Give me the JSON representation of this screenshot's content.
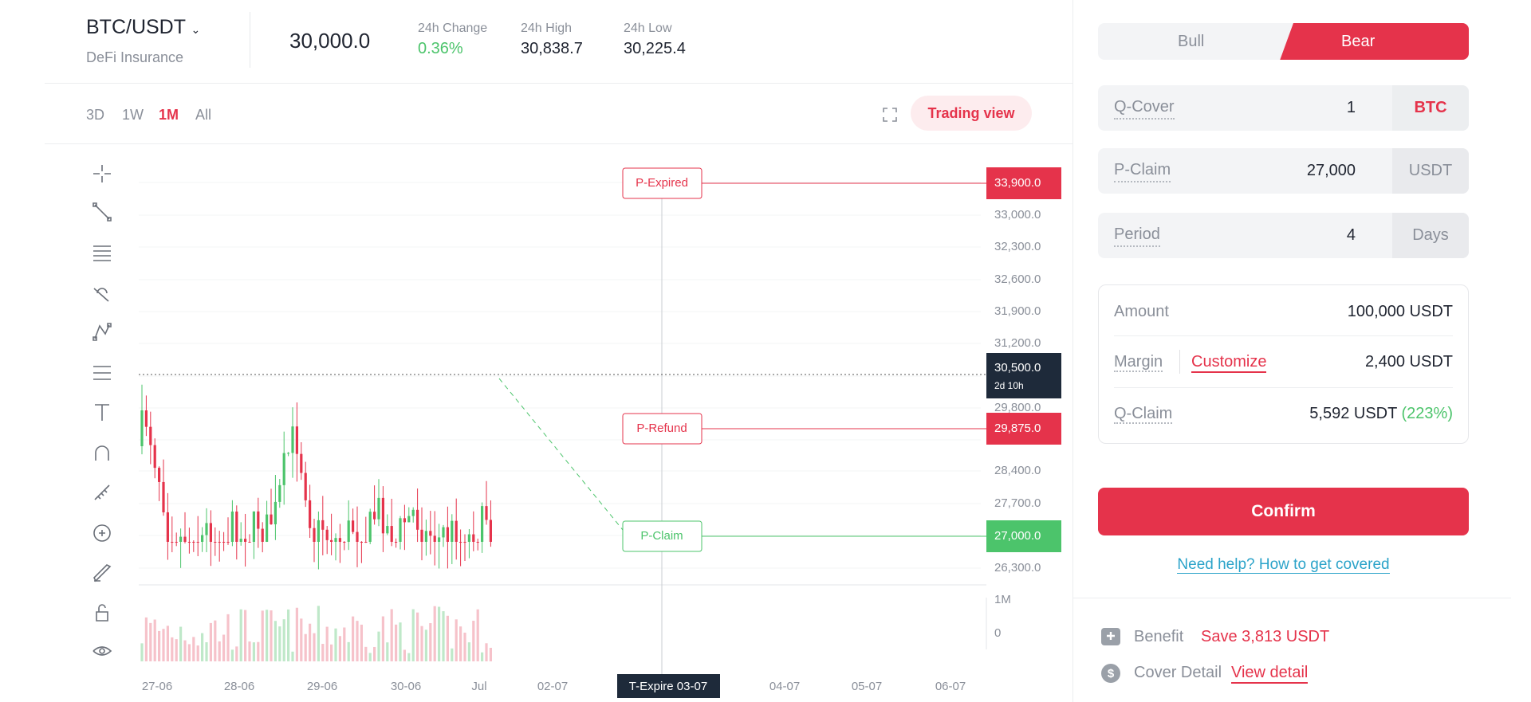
{
  "header": {
    "pair": "BTC/USDT",
    "subtitle": "DeFi Insurance",
    "price": "30,000.0",
    "stats": [
      {
        "label": "24h Change",
        "value": "0.36%"
      },
      {
        "label": "24h High",
        "value": "30,838.7"
      },
      {
        "label": "24h Low",
        "value": "30,225.4"
      }
    ]
  },
  "timeframes": [
    "3D",
    "1W",
    "1M",
    "All"
  ],
  "trading_view": "Trading view",
  "chart": {
    "price_labels": [
      "33,000.0",
      "32,300.0",
      "32,600.0",
      "31,900.0",
      "31,200.0",
      "29,800.0",
      "28,400.0",
      "27,700.0",
      "26,300.0"
    ],
    "volume_labels": [
      "1M",
      "0"
    ],
    "current_price": "30,500.0",
    "countdown": "2d 10h",
    "markers": [
      {
        "label": "P-Expired",
        "price": "33,900.0"
      },
      {
        "label": "P-Refund",
        "price": "29,875.0"
      },
      {
        "label": "P-Claim",
        "price": "27,000.0"
      }
    ],
    "dates": [
      "27-06",
      "28-06",
      "29-06",
      "30-06",
      "Jul",
      "02-07",
      "04-07",
      "05-07",
      "06-07"
    ],
    "expire_label": "T-Expire 03-07"
  },
  "order": {
    "sides": [
      "Bull",
      "Bear"
    ],
    "fields": [
      {
        "label": "Q-Cover",
        "value": "1",
        "unit": "BTC"
      },
      {
        "label": "P-Claim",
        "value": "27,000",
        "unit": "USDT"
      },
      {
        "label": "Period",
        "value": "4",
        "unit": "Days"
      }
    ],
    "amount": {
      "label": "Amount",
      "value": "100,000 USDT"
    },
    "margin": {
      "label": "Margin",
      "action": "Customize",
      "value": "2,400 USDT"
    },
    "q_claim": {
      "label": "Q-Claim",
      "value": "5,592 USDT",
      "ratio": "(223%)"
    },
    "confirm": "Confirm",
    "help": "Need help? How to get covered",
    "benefit": {
      "label": "Benefit",
      "value": "Save 3,813 USDT"
    },
    "cover_detail": {
      "label": "Cover Detail",
      "link": "View detail"
    }
  }
}
